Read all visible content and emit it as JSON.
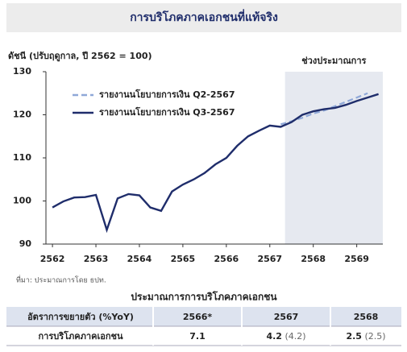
{
  "chart_data": {
    "type": "line",
    "title": "การบริโภคภาคเอกชนที่แท้จริง",
    "y_label": "ดัชนี (ปรับฤดูกาล, ปี 2562 = 100)",
    "forecast_region": {
      "label": "ช่วงประมาณการ",
      "from": 2567.35,
      "to": 2569.6
    },
    "xlim": [
      2561.85,
      2569.6
    ],
    "xticks": [
      2562,
      2563,
      2564,
      2565,
      2566,
      2567,
      2568,
      2569
    ],
    "ylim": [
      90,
      130
    ],
    "yticks": [
      90,
      100,
      110,
      120,
      130
    ],
    "legend": "upper left",
    "series": [
      {
        "name": "รายงานนโยบายการเงิน Q2-2567",
        "color": "#8fa8d8",
        "dashed": true,
        "x": [
          2567.25,
          2567.5,
          2567.75,
          2568,
          2568.25,
          2568.5,
          2568.75,
          2569,
          2569.25
        ],
        "values": [
          117.8,
          118.5,
          119.3,
          120.3,
          121.0,
          122.0,
          123.0,
          124.0,
          125.0
        ]
      },
      {
        "name": "รายงานนโยบายการเงิน Q3-2567",
        "color": "#1f2d6b",
        "dashed": false,
        "x": [
          2562,
          2562.25,
          2562.5,
          2562.75,
          2563,
          2563.25,
          2563.5,
          2563.75,
          2564,
          2564.25,
          2564.5,
          2564.75,
          2565,
          2565.25,
          2565.5,
          2565.75,
          2566,
          2566.25,
          2566.5,
          2566.75,
          2567,
          2567.25,
          2567.5,
          2567.75,
          2568,
          2568.25,
          2568.5,
          2568.75,
          2569,
          2569.25,
          2569.5
        ],
        "values": [
          98.5,
          99.9,
          100.8,
          100.9,
          101.4,
          93.3,
          100.6,
          101.6,
          101.3,
          98.5,
          97.7,
          102.2,
          103.8,
          105.0,
          106.5,
          108.5,
          110.0,
          112.8,
          115.0,
          116.3,
          117.5,
          117.2,
          118.3,
          120.0,
          120.8,
          121.3,
          121.6,
          122.3,
          123.2,
          124.0,
          124.8
        ]
      }
    ]
  },
  "source": "ที่มา: ประมาณการโดย ธปท.",
  "table": {
    "title": "ประมาณการการบริโภคภาคเอกชน",
    "header": [
      "อัตราการขยายตัว (%YoY)",
      "2566*",
      "2567",
      "2568"
    ],
    "rows": [
      {
        "label": "การบริโภคภาคเอกชน",
        "cells": [
          {
            "value": "7.1"
          },
          {
            "value": "4.2",
            "previous": "(4.2)"
          },
          {
            "value": "2.5",
            "previous": "(2.5)"
          }
        ]
      }
    ]
  }
}
